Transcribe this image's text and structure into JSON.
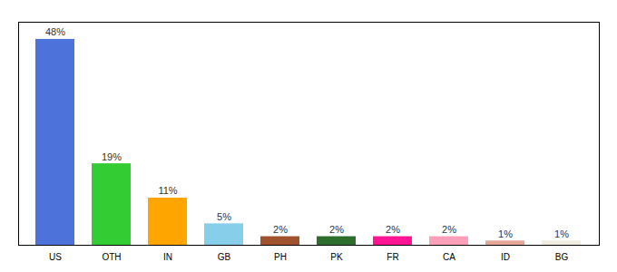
{
  "chart_data": {
    "type": "bar",
    "categories": [
      "US",
      "OTH",
      "IN",
      "GB",
      "PH",
      "PK",
      "FR",
      "CA",
      "ID",
      "BG"
    ],
    "values": [
      48,
      19,
      11,
      5,
      2,
      2,
      2,
      2,
      1,
      1
    ],
    "value_labels": [
      "48%",
      "19%",
      "11%",
      "5%",
      "2%",
      "2%",
      "2%",
      "2%",
      "1%",
      "1%"
    ],
    "colors": [
      "#4d72d9",
      "#33cc33",
      "#ffa500",
      "#87ceeb",
      "#a0522d",
      "#2d6e2d",
      "#ff1493",
      "#ff9fba",
      "#e8a898",
      "#f0ede0"
    ],
    "ylim": [
      0,
      52
    ],
    "data_labels": true,
    "tick_labels": "x",
    "grid": false
  }
}
